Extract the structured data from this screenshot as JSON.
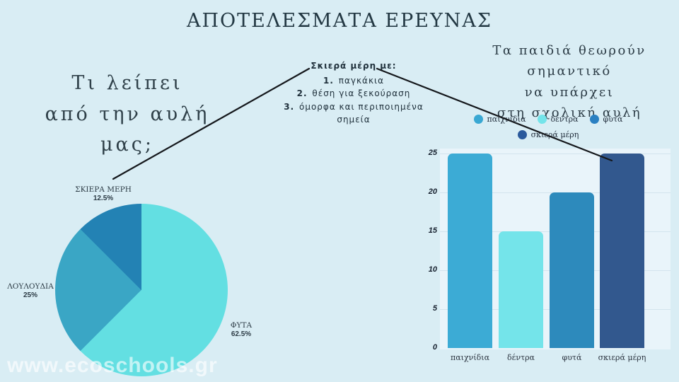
{
  "slide": {
    "title": "ΑΠΟΤΕΛΕΣΜΑΤΑ ΕΡΕΥΝΑΣ",
    "watermark": "www.ecoschools.gr",
    "background_color": "#d9edf4"
  },
  "left_heading": {
    "text": "Τι λείπει\nαπό την αυλή\nμας;"
  },
  "right_heading": {
    "text": "Τα παιδιά θεωρούν\nσημαντικό\nνα υπάρχει\nστη σχολική αυλή"
  },
  "annotation": {
    "title": "Σκιερά μέρη με:",
    "items": [
      {
        "num": "1.",
        "text": "παγκάκια"
      },
      {
        "num": "2.",
        "text": "θέση για ξεκούραση"
      },
      {
        "num": "3.",
        "text": "όμορφα και περιποιημένα σημεία"
      }
    ]
  },
  "chart_data": [
    {
      "type": "pie",
      "title": "Τι λείπει από την αυλή μας;",
      "direction": "clockwise",
      "start_angle_deg": 0,
      "slices": [
        {
          "label": "ΦΥΤΑ",
          "value": 62.5,
          "pct_label": "62.5%",
          "color": "#63dfe2"
        },
        {
          "label": "ΛΟΥΛΟΥΔΙΑ",
          "value": 25,
          "pct_label": "25%",
          "color": "#3aa6c5"
        },
        {
          "label": "ΣΚΙΕΡΑ ΜΕΡΗ",
          "value": 12.5,
          "pct_label": "12.5%",
          "color": "#2382b4"
        }
      ]
    },
    {
      "type": "bar",
      "title": "Τα παιδιά θεωρούν σημαντικό να υπάρχει στη σχολική αυλή",
      "categories": [
        "παιχνίδια",
        "δέντρα",
        "φυτά",
        "σκιερά μέρη"
      ],
      "values": [
        25,
        15,
        20,
        25
      ],
      "bar_colors": [
        "#3cabd5",
        "#74e4ea",
        "#2d8abc",
        "#32588e"
      ],
      "legend": [
        {
          "label": "παιχνίδια",
          "color": "#39a8d3"
        },
        {
          "label": "δέντρα",
          "color": "#74e4ea"
        },
        {
          "label": "φυτά",
          "color": "#2a80c2"
        },
        {
          "label": "σκιερά μέρη",
          "color": "#2b5a9c"
        }
      ],
      "ylim": [
        0,
        25
      ],
      "yticks": [
        0,
        5,
        10,
        15,
        20,
        25
      ],
      "grid": true,
      "legend_position": "top"
    }
  ]
}
